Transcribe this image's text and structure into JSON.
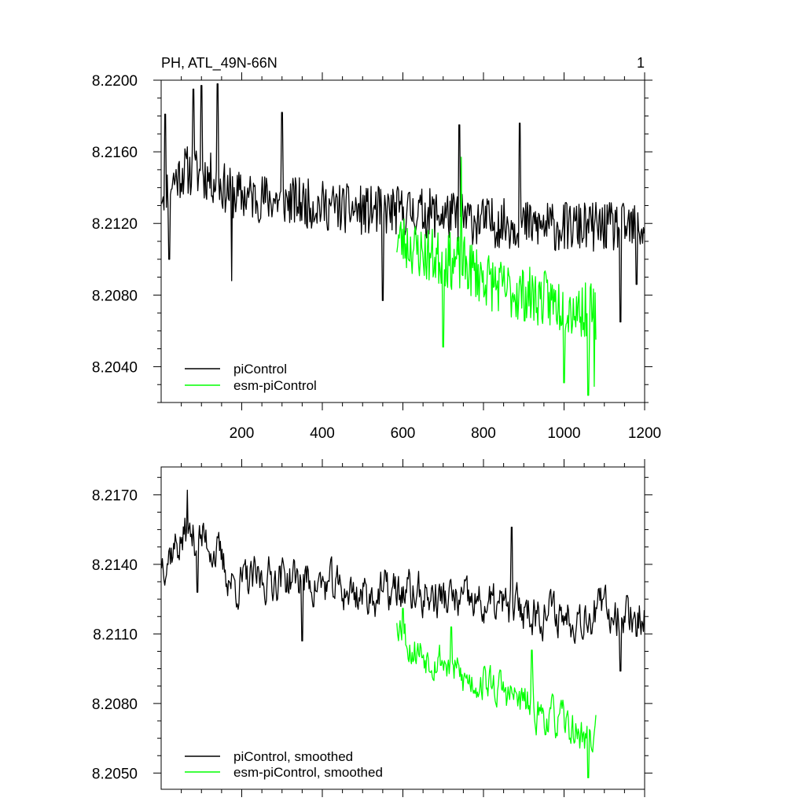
{
  "chart_data": [
    {
      "type": "line",
      "title": "PH, ATL_49N-66N",
      "panel_label": "1",
      "xlabel": "",
      "ylabel": "",
      "xlim": [
        0,
        1200
      ],
      "ylim": [
        8.202,
        8.22
      ],
      "x_ticks": [
        200,
        400,
        600,
        800,
        1000,
        1200
      ],
      "y_ticks": [
        8.204,
        8.208,
        8.212,
        8.216,
        8.22
      ],
      "y_tick_labels": [
        "8.2040",
        "8.2080",
        "8.2120",
        "8.2160",
        "8.2200"
      ],
      "legend": [
        "piControl",
        "esm-piControl"
      ],
      "legend_position": "bottom-left",
      "series": [
        {
          "name": "piControl",
          "color": "#000000",
          "x_start": 1,
          "x_end": 1200,
          "anchors": [
            [
              0,
              8.2138
            ],
            [
              60,
              8.215
            ],
            [
              120,
              8.2146
            ],
            [
              180,
              8.2136
            ],
            [
              300,
              8.2133
            ],
            [
              400,
              8.213
            ],
            [
              500,
              8.2127
            ],
            [
              600,
              8.2127
            ],
            [
              700,
              8.2125
            ],
            [
              800,
              8.2121
            ],
            [
              900,
              8.2119
            ],
            [
              1000,
              8.2118
            ],
            [
              1100,
              8.2118
            ],
            [
              1200,
              8.2117
            ]
          ],
          "noise_amplitude": 0.0014,
          "seed": 11,
          "extremes": [
            [
              10,
              8.2181
            ],
            [
              20,
              8.21
            ],
            [
              80,
              8.2195
            ],
            [
              100,
              8.2197
            ],
            [
              140,
              8.2198
            ],
            [
              175,
              8.2088
            ],
            [
              300,
              8.2182
            ],
            [
              550,
              8.2077
            ],
            [
              740,
              8.2175
            ],
            [
              890,
              8.2176
            ],
            [
              1140,
              8.2065
            ],
            [
              1180,
              8.2086
            ]
          ]
        },
        {
          "name": "esm-piControl",
          "color": "#00ff00",
          "x_start": 585,
          "x_end": 1080,
          "anchors": [
            [
              585,
              8.2112
            ],
            [
              650,
              8.2103
            ],
            [
              750,
              8.2097
            ],
            [
              850,
              8.2083
            ],
            [
              950,
              8.2078
            ],
            [
              1000,
              8.2074
            ],
            [
              1080,
              8.207
            ]
          ],
          "noise_amplitude": 0.0016,
          "seed": 23,
          "extremes": [
            [
              700,
              8.2051
            ],
            [
              745,
              8.2157
            ],
            [
              1000,
              8.2031
            ],
            [
              1060,
              8.2024
            ],
            [
              1075,
              8.2029
            ]
          ]
        }
      ]
    },
    {
      "type": "line",
      "title": "",
      "xlabel": "",
      "ylabel": "",
      "xlim": [
        0,
        1200
      ],
      "ylim": [
        8.2043,
        8.2182
      ],
      "x_ticks": [
        200,
        400,
        600,
        800,
        1000,
        1200
      ],
      "y_ticks": [
        8.205,
        8.208,
        8.211,
        8.214,
        8.217
      ],
      "y_tick_labels": [
        "8.2050",
        "8.2080",
        "8.2110",
        "8.2140",
        "8.2170"
      ],
      "legend": [
        "piControl, smoothed",
        "esm-piControl, smoothed"
      ],
      "legend_position": "bottom-left",
      "series": [
        {
          "name": "piControl, smoothed",
          "color": "#000000",
          "x_start": 1,
          "x_end": 1200,
          "anchors": [
            [
              0,
              8.2142
            ],
            [
              60,
              8.2152
            ],
            [
              120,
              8.215
            ],
            [
              180,
              8.2131
            ],
            [
              300,
              8.2135
            ],
            [
              400,
              8.2131
            ],
            [
              500,
              8.2127
            ],
            [
              600,
              8.2128
            ],
            [
              700,
              8.2125
            ],
            [
              800,
              8.2122
            ],
            [
              900,
              8.2121
            ],
            [
              1000,
              8.2118
            ],
            [
              1100,
              8.212
            ],
            [
              1200,
              8.2118
            ]
          ],
          "noise_amplitude": 0.00085,
          "seed": 37,
          "extremes": [
            [
              65,
              8.2172
            ],
            [
              90,
              8.2128
            ],
            [
              350,
              8.2107
            ],
            [
              870,
              8.2156
            ],
            [
              1140,
              8.2094
            ],
            [
              1180,
              8.2109
            ]
          ]
        },
        {
          "name": "esm-piControl, smoothed",
          "color": "#00ff00",
          "x_start": 585,
          "x_end": 1080,
          "anchors": [
            [
              585,
              8.2118
            ],
            [
              620,
              8.2104
            ],
            [
              700,
              8.2099
            ],
            [
              750,
              8.209
            ],
            [
              800,
              8.209
            ],
            [
              900,
              8.208
            ],
            [
              950,
              8.2075
            ],
            [
              1000,
              8.2071
            ],
            [
              1050,
              8.2065
            ],
            [
              1080,
              8.2066
            ]
          ],
          "noise_amplitude": 0.00075,
          "seed": 53,
          "extremes": [
            [
              600,
              8.2121
            ],
            [
              720,
              8.2113
            ],
            [
              920,
              8.2103
            ],
            [
              1035,
              8.2069
            ],
            [
              1060,
              8.2048
            ],
            [
              1080,
              8.2075
            ]
          ]
        }
      ]
    }
  ]
}
